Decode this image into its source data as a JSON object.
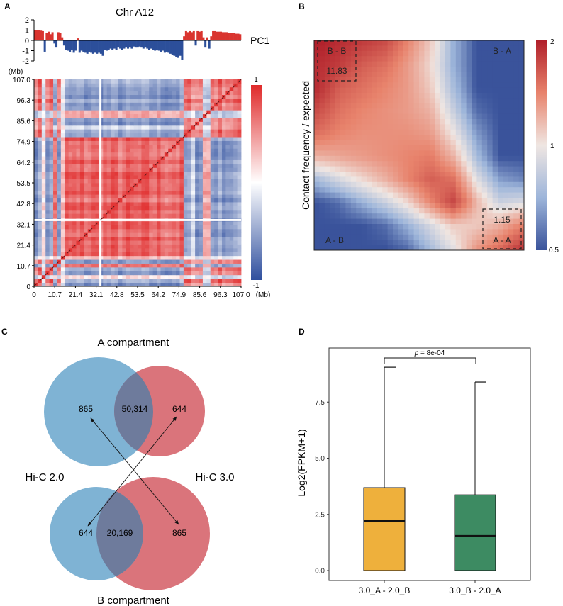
{
  "panel_labels": [
    "A",
    "B",
    "C",
    "D"
  ],
  "chart_data": [
    {
      "panel": "A",
      "type": "heatmap",
      "title": "Chr A12",
      "track_label": "PC1",
      "pc1_ticks": [
        "2",
        "1",
        "0",
        "-1",
        "-2"
      ],
      "pc1_range": [
        -2,
        2
      ],
      "unit_label": "(Mb)",
      "axis_ticks": [
        "0",
        "10.7",
        "21.4",
        "32.1",
        "42.8",
        "53.5",
        "64.2",
        "74.9",
        "85.6",
        "96.3",
        "107.0"
      ],
      "axis_range": [
        0,
        107
      ],
      "colorbar_ticks": [
        "1",
        "-1"
      ],
      "colorbar_range": [
        -1,
        1
      ],
      "colors": {
        "positive": "#e02a2a",
        "negative": "#2f4f9e",
        "zero": "#ffffff",
        "pc1_pos": "#d9342f",
        "pc1_neg": "#2c4f9a"
      },
      "pc1_per_mb": [
        1.0,
        1.0,
        1.0,
        0.95,
        0.9,
        -1.1,
        0.7,
        0.85,
        0.6,
        0.8,
        -0.3,
        -0.7,
        0.8,
        0.7,
        0.3,
        -0.5,
        -0.9,
        -1.0,
        -1.1,
        -0.9,
        -1.2,
        -1.0,
        0.2,
        -1.2,
        -1.0,
        -1.1,
        -1.2,
        -1.3,
        -1.1,
        -1.2,
        -1.3,
        -1.2,
        -1.3,
        -1.2,
        -1.3,
        -1.5,
        -0.9,
        -1.0,
        -0.9,
        -0.8,
        -0.9,
        -0.8,
        -0.9,
        -0.7,
        -0.8,
        -0.9,
        -0.8,
        -0.7,
        -0.8,
        -0.7,
        -0.8,
        -0.6,
        -0.7,
        -0.7,
        -0.6,
        -0.7,
        -0.8,
        -0.7,
        -0.8,
        -0.9,
        -0.8,
        -0.9,
        -1.0,
        -0.9,
        -1.0,
        -1.1,
        -1.0,
        -1.2,
        -1.1,
        -1.2,
        -1.3,
        -1.4,
        -1.5,
        -1.6,
        -1.7,
        -1.5,
        -1.9,
        0.4,
        0.9,
        0.8,
        0.9,
        0.8,
        0.9,
        -0.5,
        0.9,
        0.85,
        0.9,
        0.3,
        -0.7,
        0.3,
        -0.8,
        0.4,
        0.9,
        0.9,
        0.85,
        0.85,
        0.85,
        0.8,
        0.8,
        0.8,
        0.75,
        0.75,
        0.7,
        0.7,
        0.65,
        0.65,
        0.6
      ]
    },
    {
      "panel": "B",
      "type": "heatmap",
      "ylabel": "Contact frequency / expected",
      "colorbar_ticks": [
        "2",
        "1",
        "0.5"
      ],
      "colorbar_range": [
        0.5,
        2
      ],
      "colorbar_scale": "log",
      "corner_labels": {
        "top_left": "B - B",
        "top_right": "B - A",
        "bottom_left": "A - B",
        "bottom_right": "A - A"
      },
      "box_values": {
        "top_left": "11.83",
        "bottom_right": "1.15"
      },
      "matrix": [
        [
          2.0,
          1.9,
          1.8,
          1.7,
          1.4,
          1.1,
          0.7,
          0.5,
          0.5,
          0.5
        ],
        [
          1.9,
          1.8,
          1.6,
          1.5,
          1.3,
          1.05,
          0.7,
          0.5,
          0.5,
          0.5
        ],
        [
          1.9,
          1.6,
          1.5,
          1.4,
          1.3,
          1.1,
          0.75,
          0.5,
          0.5,
          0.5
        ],
        [
          1.7,
          1.5,
          1.4,
          1.35,
          1.3,
          1.2,
          0.85,
          0.55,
          0.5,
          0.5
        ],
        [
          1.5,
          1.4,
          1.35,
          1.35,
          1.35,
          1.3,
          1.0,
          0.65,
          0.5,
          0.5
        ],
        [
          1.2,
          1.25,
          1.3,
          1.35,
          1.4,
          1.45,
          1.2,
          0.75,
          0.5,
          0.5
        ],
        [
          0.75,
          0.9,
          1.05,
          1.2,
          1.4,
          1.6,
          1.5,
          0.95,
          0.65,
          0.6
        ],
        [
          0.5,
          0.55,
          0.7,
          0.85,
          1.05,
          1.4,
          1.75,
          1.2,
          0.85,
          0.9
        ],
        [
          0.5,
          0.5,
          0.5,
          0.55,
          0.7,
          0.9,
          1.1,
          1.1,
          1.2,
          1.4
        ],
        [
          0.5,
          0.5,
          0.5,
          0.5,
          0.55,
          0.75,
          0.95,
          1.3,
          1.5,
          1.8
        ]
      ]
    },
    {
      "panel": "C",
      "type": "venn",
      "top_title": "A compartment",
      "bottom_title": "B compartment",
      "left_label": "Hi-C 2.0",
      "right_label": "Hi-C 3.0",
      "top_values": {
        "left": "865",
        "both": "50,314",
        "right": "644"
      },
      "bottom_values": {
        "left": "644",
        "both": "20,169",
        "right": "865"
      },
      "colors": {
        "hic2": "#7fb3d4",
        "hic3": "#da747b",
        "overlap": "#6e7b9c"
      }
    },
    {
      "panel": "D",
      "type": "box",
      "ylabel": "Log2(FPKM+1)",
      "yticks": [
        "0.0",
        "2.5",
        "5.0",
        "7.5"
      ],
      "ylim": [
        -0.3,
        9.8
      ],
      "categories": [
        "3.0_A - 2.0_B",
        "3.0_B - 2.0_A"
      ],
      "boxes": [
        {
          "min": 0,
          "q1": 0,
          "median": 2.2,
          "q3": 3.69,
          "max": 9.05,
          "color": "#eeb03c"
        },
        {
          "min": 0,
          "q1": 0,
          "median": 1.54,
          "q3": 3.37,
          "max": 8.39,
          "color": "#3d8b62"
        }
      ],
      "p_label_prefix": "p",
      "p_label_value": " = 8e-04"
    }
  ]
}
